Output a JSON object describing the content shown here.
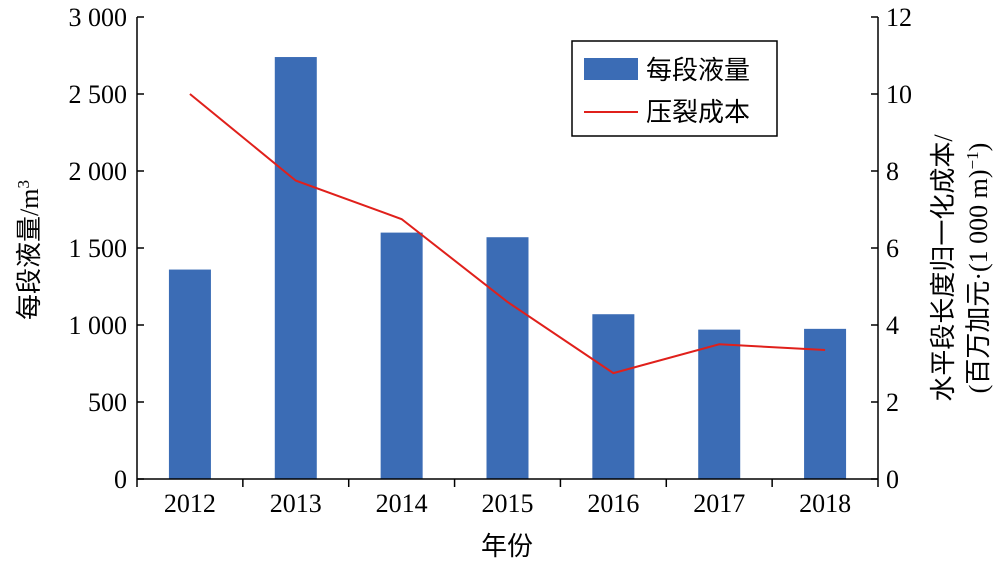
{
  "chart_data": {
    "type": "bar",
    "categories": [
      "2012",
      "2013",
      "2014",
      "2015",
      "2016",
      "2017",
      "2018"
    ],
    "xlabel": "年份",
    "ylabel_left": "每段液量/m",
    "ylabel_left_superscript": "3",
    "ylabel_right_line1": "水平段长度归一化成本/",
    "ylabel_right_line2": "(百万加元·(1 000 m)",
    "ylabel_right_line2_superscript": "−1",
    "ylabel_right_line2_end": ")",
    "ylim_left": [
      0,
      3000
    ],
    "ylim_right": [
      0,
      12
    ],
    "yticks_left": [
      "0",
      "500",
      "1 000",
      "1 500",
      "2 000",
      "2 500",
      "3 000"
    ],
    "yticks_right": [
      "0",
      "2",
      "4",
      "6",
      "8",
      "10",
      "12"
    ],
    "legend_position": "top-right",
    "series": [
      {
        "name": "每段液量",
        "type": "bar",
        "axis": "left",
        "color": "#3B6CB5",
        "values": [
          1360,
          2740,
          1600,
          1570,
          1070,
          970,
          975
        ]
      },
      {
        "name": "压裂成本",
        "type": "line",
        "axis": "right",
        "color": "#E0201B",
        "values": [
          10.0,
          7.75,
          6.75,
          4.6,
          2.75,
          3.5,
          3.35
        ]
      }
    ]
  }
}
